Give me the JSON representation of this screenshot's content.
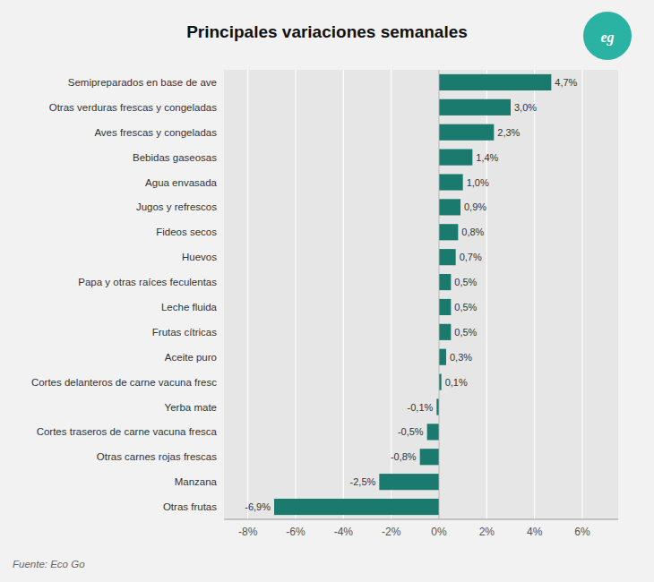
{
  "chart_data": {
    "type": "bar",
    "orientation": "horizontal",
    "title": "Principales variaciones semanales",
    "annotations": [
      {
        "text": "Fuente: Eco Go"
      },
      {
        "text": "eg",
        "color": "#2ab3a3"
      }
    ],
    "categories": [
      "Otras frutas",
      "Manzana",
      "Otras carnes rojas frescas",
      "Cortes traseros de carne vacuna fresca",
      "Yerba mate",
      "Cortes delanteros de carne vacuna fresc",
      "Aceite puro",
      "Frutas cítricas",
      "Leche fluida",
      "Papa y otras raíces feculentas",
      "Huevos",
      "Fideos secos",
      "Jugos y refrescos",
      "Agua envasada",
      "Bebidas gaseosas",
      "Aves frescas y congeladas",
      "Otras verduras frescas y congeladas",
      "Semipreparados en base de ave"
    ],
    "values": [
      -6.9,
      -2.5,
      -0.8,
      -0.5,
      -0.1,
      0.1,
      0.3,
      0.5,
      0.5,
      0.5,
      0.7,
      0.8,
      0.9,
      1.0,
      1.4,
      2.3,
      3.0,
      4.7
    ],
    "value_labels": [
      "-6,9%",
      "-2,5%",
      "-0,8%",
      "-0,5%",
      "-0,1%",
      "0,1%",
      "0,3%",
      "0,5%",
      "0,5%",
      "0,5%",
      "0,7%",
      "0,8%",
      "0,9%",
      "1,0%",
      "1,4%",
      "2,3%",
      "3,0%",
      "4,7%"
    ],
    "data_labels": true,
    "color": "#1a7a6e",
    "xlim": [
      -9.0,
      7.5
    ],
    "xticks": [
      {
        "value": -8,
        "label": "-8%"
      },
      {
        "value": -6,
        "label": "-6%"
      },
      {
        "value": -4,
        "label": "-4%"
      },
      {
        "value": -2,
        "label": "-2%"
      },
      {
        "value": 0,
        "label": "0%"
      },
      {
        "value": 2,
        "label": "2%"
      },
      {
        "value": 4,
        "label": "4%"
      },
      {
        "value": 6,
        "label": "6%"
      }
    ],
    "grid": true
  }
}
